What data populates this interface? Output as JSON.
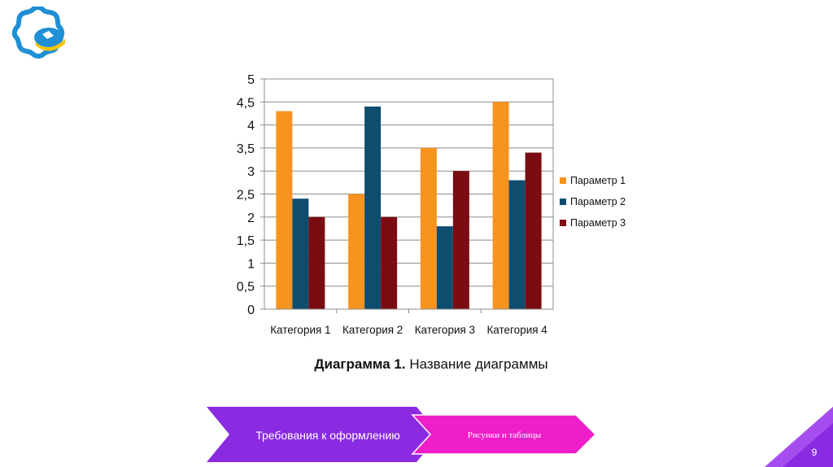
{
  "chart_data": {
    "type": "bar",
    "categories": [
      "Категория 1",
      "Категория 2",
      "Категория 3",
      "Категория 4"
    ],
    "series": [
      {
        "name": "Параметр 1",
        "values": [
          4.3,
          2.5,
          3.5,
          4.5
        ]
      },
      {
        "name": "Параметр 2",
        "values": [
          2.4,
          4.4,
          1.8,
          2.8
        ]
      },
      {
        "name": "Параметр 3",
        "values": [
          2.0,
          2.0,
          3.0,
          3.4
        ]
      }
    ],
    "yticks": [
      "0",
      "0,5",
      "1",
      "1,5",
      "2",
      "2,5",
      "3",
      "3,5",
      "4",
      "4,5",
      "5"
    ],
    "ylim": [
      0,
      5
    ],
    "grid": true,
    "legend_position": "right",
    "colors": [
      "#f7931e",
      "#0e4d6e",
      "#7a0c12"
    ]
  },
  "caption": {
    "bold": "Диаграмма 1.",
    "text": " Название диаграммы"
  },
  "nav": {
    "item1": "Требования к оформлению",
    "item2": "Рисунки и таблицы"
  },
  "page_number": "9",
  "colors": {
    "nav_purple": "#8a2be2",
    "nav_magenta": "#ee1ec8",
    "logo_blue": "#1f8fd6",
    "logo_yellow": "#f5c400"
  }
}
